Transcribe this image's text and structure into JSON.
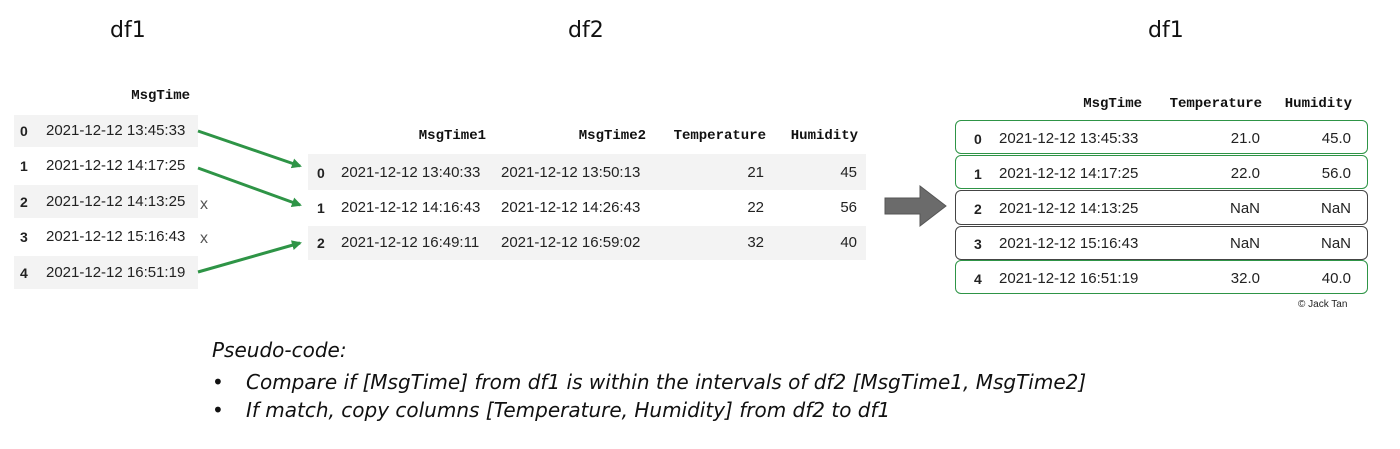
{
  "titles": {
    "df1_left": "df1",
    "df2": "df2",
    "df1_right": "df1"
  },
  "df1_left": {
    "header": "MsgTime",
    "rows": [
      {
        "index": "0",
        "msgtime": "2021-12-12 13:45:33",
        "matched": true
      },
      {
        "index": "1",
        "msgtime": "2021-12-12 14:17:25",
        "matched": true
      },
      {
        "index": "2",
        "msgtime": "2021-12-12 14:13:25",
        "matched": false
      },
      {
        "index": "3",
        "msgtime": "2021-12-12 15:16:43",
        "matched": false
      },
      {
        "index": "4",
        "msgtime": "2021-12-12 16:51:19",
        "matched": true
      }
    ],
    "no_match_mark": "x"
  },
  "df2": {
    "headers": {
      "msgtime1": "MsgTime1",
      "msgtime2": "MsgTime2",
      "temperature": "Temperature",
      "humidity": "Humidity"
    },
    "rows": [
      {
        "index": "0",
        "msgtime1": "2021-12-12 13:40:33",
        "msgtime2": "2021-12-12 13:50:13",
        "temperature": "21",
        "humidity": "45"
      },
      {
        "index": "1",
        "msgtime1": "2021-12-12 14:16:43",
        "msgtime2": "2021-12-12 14:26:43",
        "temperature": "22",
        "humidity": "56"
      },
      {
        "index": "2",
        "msgtime1": "2021-12-12 16:49:11",
        "msgtime2": "2021-12-12 16:59:02",
        "temperature": "32",
        "humidity": "40"
      }
    ]
  },
  "df1_right": {
    "headers": {
      "msgtime": "MsgTime",
      "temperature": "Temperature",
      "humidity": "Humidity"
    },
    "rows": [
      {
        "index": "0",
        "msgtime": "2021-12-12 13:45:33",
        "temperature": "21.0",
        "humidity": "45.0",
        "matched": true
      },
      {
        "index": "1",
        "msgtime": "2021-12-12 14:17:25",
        "temperature": "22.0",
        "humidity": "56.0",
        "matched": true
      },
      {
        "index": "2",
        "msgtime": "2021-12-12 14:13:25",
        "temperature": "NaN",
        "humidity": "NaN",
        "matched": false
      },
      {
        "index": "3",
        "msgtime": "2021-12-12 15:16:43",
        "temperature": "NaN",
        "humidity": "NaN",
        "matched": false
      },
      {
        "index": "4",
        "msgtime": "2021-12-12 16:51:19",
        "temperature": "32.0",
        "humidity": "40.0",
        "matched": true
      }
    ]
  },
  "copyright": "© Jack Tan",
  "pseudo_code": {
    "title": "Pseudo-code:",
    "bullet_symbol": "•",
    "bullets": [
      "Compare if [MsgTime] from df1 is within the intervals of df2 [MsgTime1, MsgTime2]",
      "If match, copy columns [Temperature, Humidity] from df2 to df1"
    ]
  },
  "colors": {
    "arrow_green": "#2e9446",
    "match_border": "#2e9446",
    "nomatch_border": "#444444",
    "stripe": "#f3f3f3",
    "block_arrow": "#6b6b6b"
  }
}
